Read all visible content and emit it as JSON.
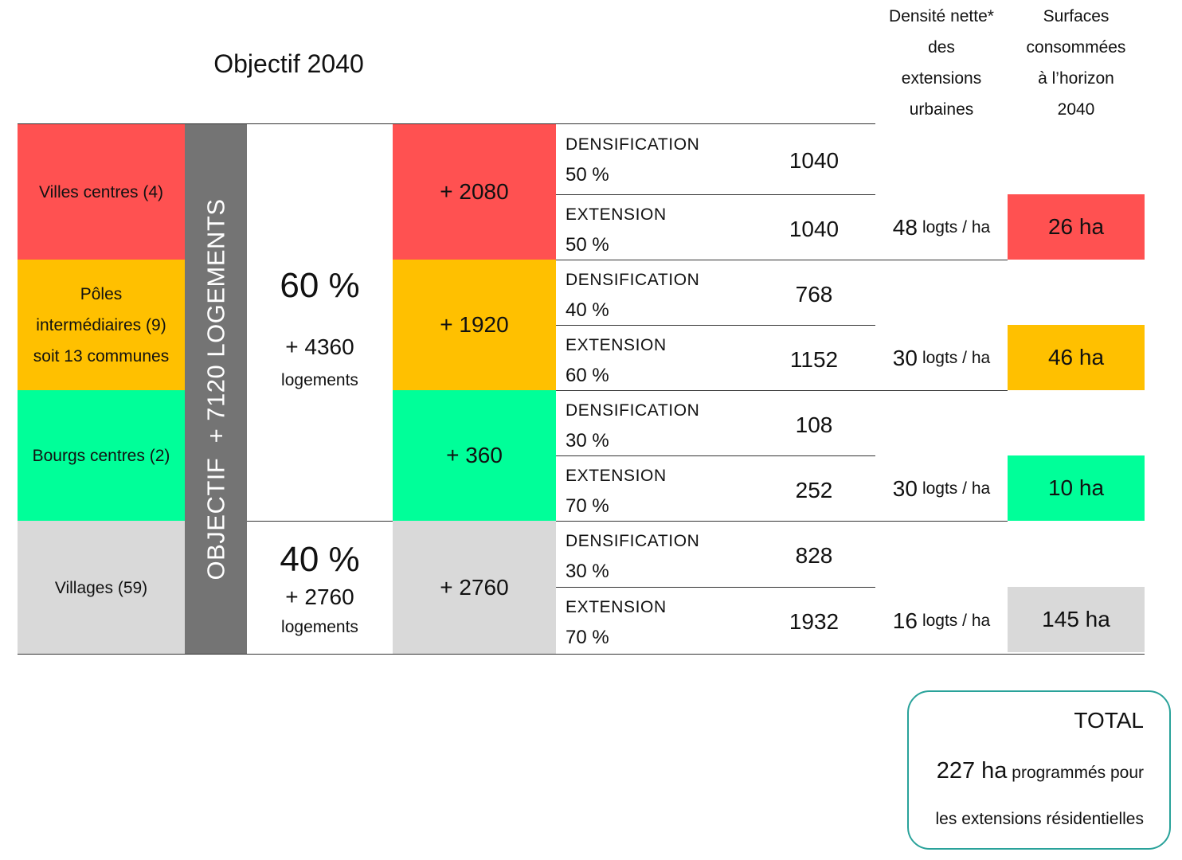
{
  "title": "Objectif 2040",
  "headers": {
    "density": [
      "Densité nette*",
      "des",
      "extensions",
      "urbaines"
    ],
    "surfaces": [
      "Surfaces",
      "consommées",
      "à l’horizon",
      "2040"
    ]
  },
  "objective": "OBJECTIF  + 7120 LOGEMENTS",
  "categories": [
    {
      "lines": [
        "Villes centres (4)"
      ],
      "color": "#ff5151",
      "total": "+ 2080"
    },
    {
      "lines": [
        "Pôles",
        "intermédiaires (9)",
        "soit 13 communes"
      ],
      "color": "#ffc000",
      "total": "+ 1920"
    },
    {
      "lines": [
        "Bourgs centres (2)"
      ],
      "color": "#00ff99",
      "total": "+ 360"
    },
    {
      "lines": [
        "Villages (59)"
      ],
      "color": "#d9d9d9",
      "total": "+ 2760"
    }
  ],
  "shares": [
    {
      "pct": "60 %",
      "plus": "+ 4360",
      "label": "logements"
    },
    {
      "pct": "40 %",
      "plus": "+ 2760",
      "label": "logements"
    }
  ],
  "rows": [
    {
      "label": "DENSIFICATION",
      "pct": "50 %",
      "value": "1040"
    },
    {
      "label": "EXTENSION",
      "pct": "50 %",
      "value": "1040"
    },
    {
      "label": "DENSIFICATION",
      "pct": "40 %",
      "value": "768"
    },
    {
      "label": "EXTENSION",
      "pct": "60 %",
      "value": "1152"
    },
    {
      "label": "DENSIFICATION",
      "pct": "30 %",
      "value": "108"
    },
    {
      "label": "EXTENSION",
      "pct": "70 %",
      "value": "252"
    },
    {
      "label": "DENSIFICATION",
      "pct": "30 %",
      "value": "828"
    },
    {
      "label": "EXTENSION",
      "pct": "70 %",
      "value": "1932"
    }
  ],
  "density": [
    {
      "value": "48",
      "unit": "logts / ha"
    },
    {
      "value": "30",
      "unit": "logts / ha"
    },
    {
      "value": "30",
      "unit": "logts / ha"
    },
    {
      "value": "16",
      "unit": "logts / ha"
    }
  ],
  "surfaces": [
    "26 ha",
    "46 ha",
    "10 ha",
    "145 ha"
  ],
  "total": {
    "title": "TOTAL",
    "value": "227 ha",
    "line1": "programmés pour",
    "line2": "les extensions résidentielles"
  }
}
